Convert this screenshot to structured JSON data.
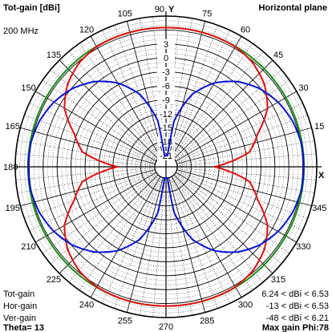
{
  "header": {
    "title_left": "Tot-gain [dBi]",
    "title_right": "Horizontal plane",
    "frequency": "200 MHz"
  },
  "footer": {
    "theta": "Theta= 13",
    "max_gain": "Max gain Phi:78"
  },
  "colors": {
    "tot": "#1a8c1a",
    "hor": "#e01010",
    "ver": "#0a14d2",
    "grid": "#000000"
  },
  "legend": [
    {
      "label": "Tot-gain",
      "range": "6.24 < dBi < 6.53",
      "color": "#1a8c1a"
    },
    {
      "label": "Hor-gain",
      "range": "-13 < dBi < 6.53",
      "color": "#e01010"
    },
    {
      "label": "Ver-gain",
      "range": "-48 < dBi < 6.21",
      "color": "#0a14d2"
    }
  ],
  "chart_data": {
    "type": "polar",
    "axis_labels": {
      "y": "Y",
      "x": "X"
    },
    "radial_ticks": [
      "3",
      "0",
      "-3",
      "-6",
      "-9",
      "-12",
      "-15",
      "-18",
      "-21"
    ],
    "radial_range_dbi": [
      -21,
      9
    ],
    "angle_ticks_deg": [
      0,
      15,
      30,
      45,
      60,
      75,
      90,
      105,
      120,
      135,
      150,
      165,
      180,
      195,
      210,
      225,
      240,
      255,
      270,
      285,
      300,
      315,
      330,
      345
    ],
    "angle_tick_labels": [
      "",
      "15",
      "30",
      "45",
      "60",
      "75",
      "90",
      "105",
      "120",
      "135",
      "150",
      "165",
      "180",
      "195",
      "210",
      "225",
      "240",
      "255",
      "270",
      "285",
      "300",
      "315",
      "330",
      "345"
    ],
    "series": [
      {
        "name": "Tot-gain",
        "phi_deg": [
          0,
          15,
          30,
          45,
          60,
          75,
          90,
          105,
          120,
          135,
          150,
          165,
          180,
          195,
          210,
          225,
          240,
          255,
          270,
          285,
          300,
          315,
          330,
          345
        ],
        "gain_dbi": [
          6.24,
          6.28,
          6.35,
          6.42,
          6.48,
          6.52,
          6.53,
          6.52,
          6.48,
          6.42,
          6.35,
          6.28,
          6.24,
          6.28,
          6.35,
          6.42,
          6.48,
          6.52,
          6.53,
          6.52,
          6.48,
          6.42,
          6.35,
          6.28
        ]
      },
      {
        "name": "Hor-gain",
        "phi_deg": [
          0,
          10,
          20,
          30,
          40,
          50,
          60,
          70,
          80,
          90,
          100,
          110,
          120,
          130,
          140,
          150,
          160,
          170,
          180,
          190,
          200,
          210,
          220,
          230,
          240,
          250,
          260,
          270,
          280,
          290,
          300,
          310,
          320,
          330,
          340,
          350
        ],
        "gain_dbi": [
          -13,
          -5.2,
          -2.4,
          1.8,
          4.2,
          5.7,
          6.4,
          6.5,
          6.53,
          6.5,
          6.53,
          6.5,
          6.4,
          5.7,
          4.2,
          1.8,
          -2.4,
          -5.2,
          -13,
          -5.2,
          -2.4,
          1.8,
          4.2,
          5.7,
          6.4,
          6.5,
          6.53,
          6.5,
          6.53,
          6.5,
          6.4,
          5.7,
          4.2,
          1.8,
          -2.4,
          -5.2
        ]
      },
      {
        "name": "Ver-gain",
        "phi_deg": [
          0,
          10,
          20,
          30,
          40,
          50,
          60,
          70,
          80,
          90,
          100,
          110,
          120,
          130,
          140,
          150,
          160,
          170,
          180,
          190,
          200,
          210,
          220,
          230,
          240,
          250,
          260,
          270,
          280,
          290,
          300,
          310,
          320,
          330,
          340,
          350
        ],
        "gain_dbi": [
          6.21,
          6.1,
          5.5,
          4.4,
          2.8,
          0.5,
          -2.6,
          -6.8,
          -13.5,
          -48,
          -13.5,
          -6.8,
          -2.6,
          0.5,
          2.8,
          4.4,
          5.5,
          6.1,
          6.21,
          6.1,
          5.5,
          4.4,
          2.8,
          0.5,
          -2.6,
          -6.8,
          -13.5,
          -48,
          -13.5,
          -6.8,
          -2.6,
          0.5,
          2.8,
          4.4,
          5.5,
          6.1
        ]
      }
    ]
  }
}
